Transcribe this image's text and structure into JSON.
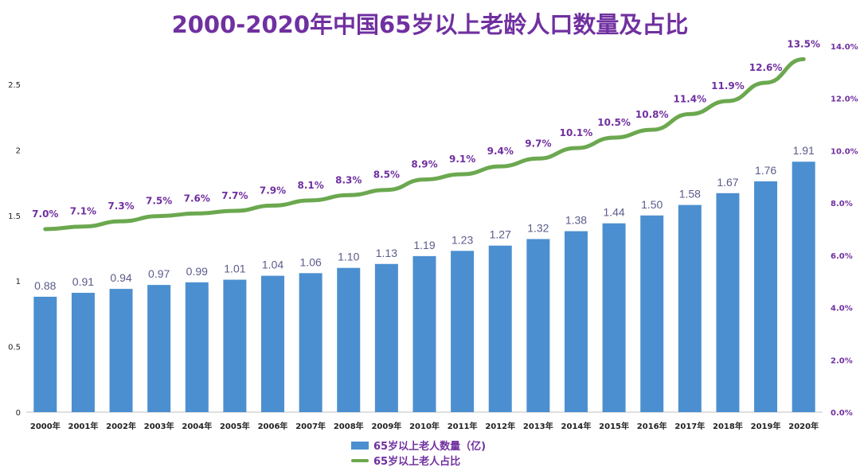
{
  "chart_data": {
    "type": "bar+line",
    "title": "2000-2020年中国65岁以上老龄人口数量及占比",
    "categories": [
      "2000年",
      "2001年",
      "2002年",
      "2003年",
      "2004年",
      "2005年",
      "2006年",
      "2007年",
      "2008年",
      "2009年",
      "2010年",
      "2011年",
      "2012年",
      "2013年",
      "2014年",
      "2015年",
      "2016年",
      "2017年",
      "2018年",
      "2019年",
      "2020年"
    ],
    "series": [
      {
        "name": "65岁以上老人数量（亿)",
        "type": "bar",
        "axis": "left",
        "values": [
          0.88,
          0.91,
          0.94,
          0.97,
          0.99,
          1.01,
          1.04,
          1.06,
          1.1,
          1.13,
          1.19,
          1.23,
          1.27,
          1.32,
          1.38,
          1.44,
          1.5,
          1.58,
          1.67,
          1.76,
          1.91
        ],
        "labels": [
          "0.88",
          "0.91",
          "0.94",
          "0.97",
          "0.99",
          "1.01",
          "1.04",
          "1.06",
          "1.10",
          "1.13",
          "1.19",
          "1.23",
          "1.27",
          "1.32",
          "1.38",
          "1.44",
          "1.50",
          "1.58",
          "1.67",
          "1.76",
          "1.91"
        ]
      },
      {
        "name": "65岁以上老人占比",
        "type": "line",
        "axis": "right",
        "values": [
          7.0,
          7.1,
          7.3,
          7.5,
          7.6,
          7.7,
          7.9,
          8.1,
          8.3,
          8.5,
          8.9,
          9.1,
          9.4,
          9.7,
          10.1,
          10.5,
          10.8,
          11.4,
          11.9,
          12.6,
          13.5
        ],
        "labels": [
          "7.0%",
          "7.1%",
          "7.3%",
          "7.5%",
          "7.6%",
          "7.7%",
          "7.9%",
          "8.1%",
          "8.3%",
          "8.5%",
          "8.9%",
          "9.1%",
          "9.4%",
          "9.7%",
          "10.1%",
          "10.5%",
          "10.8%",
          "11.4%",
          "11.9%",
          "12.6%",
          "13.5%"
        ]
      }
    ],
    "y_left": {
      "ylim": [
        0,
        2.5
      ],
      "ticks": [
        "0",
        "0.5",
        "1",
        "1.5",
        "2",
        "2.5"
      ]
    },
    "y_right": {
      "ylim": [
        0,
        14
      ],
      "ticks": [
        "0.0%",
        "2.0%",
        "4.0%",
        "6.0%",
        "8.0%",
        "10.0%",
        "12.0%",
        "14.0%"
      ]
    },
    "grid": false,
    "legend_position": "bottom",
    "colors": {
      "bar": "#4B8FD0",
      "line": "#6BA84F",
      "title": "#7030A0",
      "line_label": "#7030A0",
      "bar_label": "#5B5B8C",
      "axis_text": "#222222"
    }
  }
}
